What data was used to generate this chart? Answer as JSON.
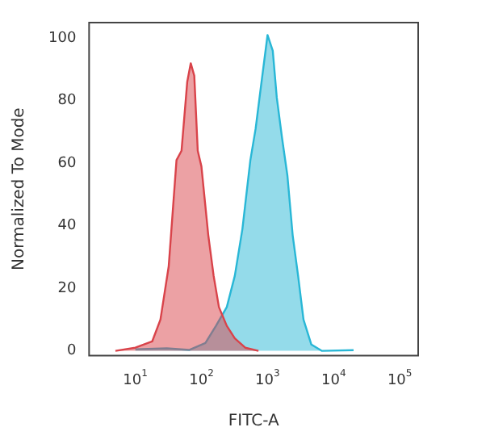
{
  "chart_data": {
    "type": "area",
    "xlabel": "FITC-A",
    "ylabel": "Normalized To Mode",
    "log": "x",
    "xlim": [
      2,
      190000
    ],
    "ylim": [
      -1.5,
      105
    ],
    "xticks": [
      {
        "value": 10,
        "label": "10$^{1}$"
      },
      {
        "value": 100,
        "label": "10$^{2}$"
      },
      {
        "value": 1000,
        "label": "10$^{3}$"
      },
      {
        "value": 10000,
        "label": "10$^{4}$"
      },
      {
        "value": 100000,
        "label": "10$^{5}$"
      }
    ],
    "yticks": [
      0,
      20,
      40,
      60,
      80,
      100
    ],
    "grid": false,
    "legend": false,
    "series": [
      {
        "color": "#d9434a",
        "x": [
          5,
          10,
          18,
          24,
          32,
          42,
          50,
          61,
          69,
          78,
          88,
          100,
          127,
          153,
          184,
          242,
          320,
          460,
          730
        ],
        "values": [
          0,
          1,
          3,
          10,
          27,
          61,
          64,
          86,
          92,
          88,
          64,
          59,
          37,
          24,
          14,
          8,
          4,
          1,
          0
        ]
      },
      {
        "color": "#29b7d6",
        "x": [
          10,
          30,
          66,
          115,
          166,
          242,
          320,
          417,
          550,
          660,
          800,
          1000,
          1200,
          1380,
          1660,
          2000,
          2400,
          2900,
          3500,
          4600,
          6600,
          20000
        ],
        "values": [
          0.5,
          0.8,
          0.3,
          2.5,
          8,
          14,
          24,
          39,
          61,
          71,
          85,
          101,
          96,
          81,
          68,
          56,
          37,
          24,
          10,
          2,
          0,
          0.2
        ]
      }
    ]
  }
}
